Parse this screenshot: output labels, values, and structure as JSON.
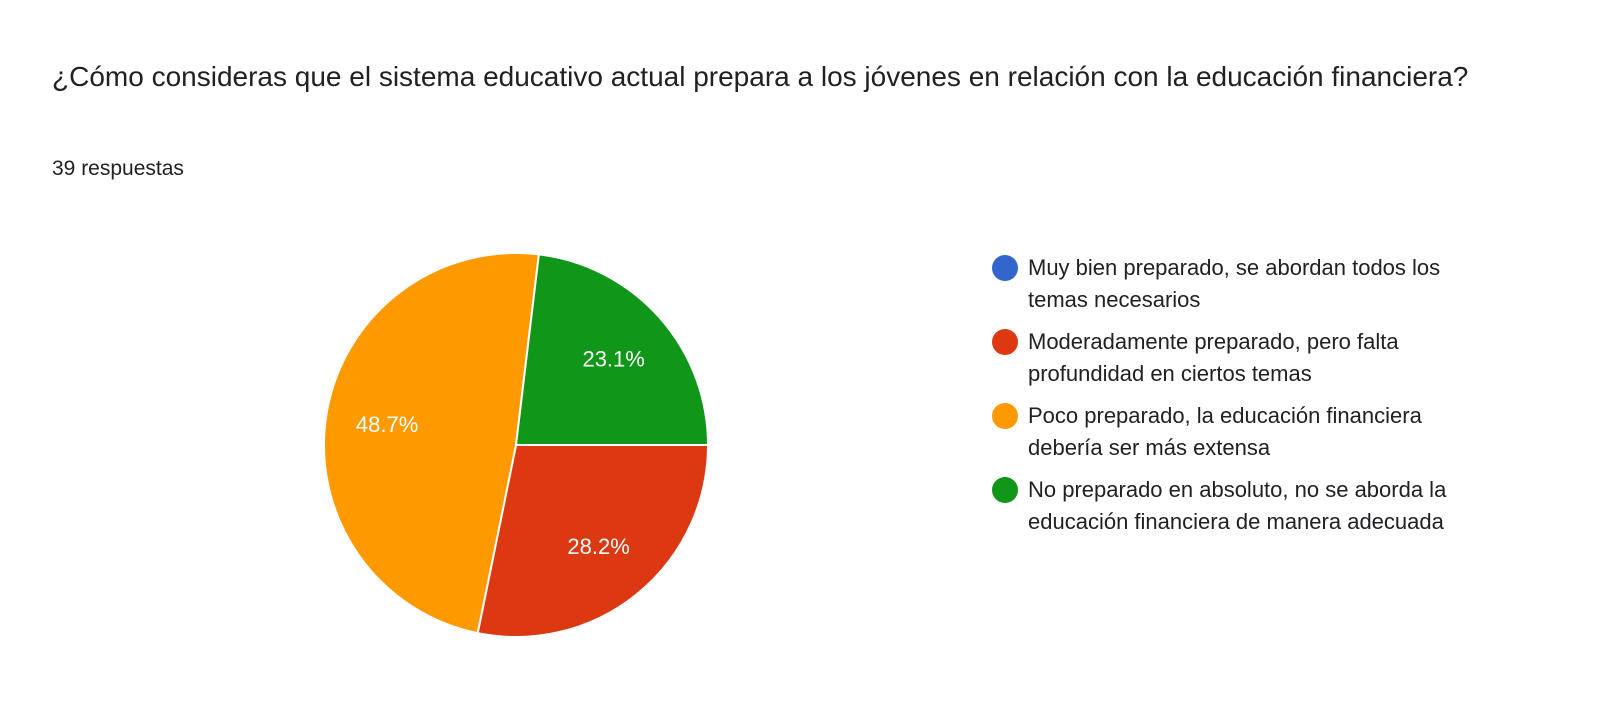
{
  "chart_data": {
    "type": "pie",
    "title": "¿Cómo consideras que el sistema educativo actual prepara a los jóvenes en relación con la educación financiera?",
    "subtitle": "39 respuestas",
    "legend_position": "right",
    "slices": [
      {
        "label": "Muy bien preparado, se abordan todos los temas necesarios",
        "value": 0,
        "color": "#3366cc"
      },
      {
        "label": "Moderadamente preparado, pero falta profundidad en ciertos temas",
        "value": 28.2,
        "data_label": "28.2%",
        "color": "#dc3912"
      },
      {
        "label": "Poco preparado, la educación financiera debería ser más extensa",
        "value": 48.7,
        "data_label": "48.7%",
        "color": "#ff9900"
      },
      {
        "label": "No preparado en absoluto, no se aborda la educación financiera de manera adecuada",
        "value": 23.1,
        "data_label": "23.1%",
        "color": "#109618"
      }
    ]
  }
}
